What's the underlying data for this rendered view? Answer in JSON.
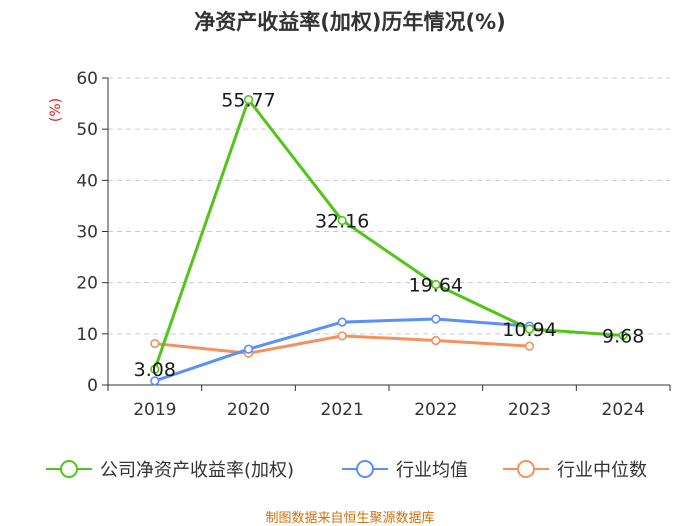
{
  "chart_data": {
    "type": "line",
    "title": "净资产收益率(加权)历年情况(%)",
    "ylabel": "(%)",
    "xlabel": "",
    "ylim": [
      0,
      60
    ],
    "yticks": [
      0,
      10,
      20,
      30,
      40,
      50,
      60
    ],
    "categories": [
      "2019",
      "2020",
      "2021",
      "2022",
      "2023",
      "2024"
    ],
    "grid": true,
    "legend_position": "bottom",
    "series": [
      {
        "name": "公司净资产收益率(加权)",
        "color": "#52c41a",
        "values": [
          3.08,
          55.77,
          32.16,
          19.64,
          10.94,
          9.68
        ],
        "labels": [
          "3.08",
          "55.77",
          "32.16",
          "19.64",
          "10.94",
          "9.68"
        ]
      },
      {
        "name": "行业均值",
        "color": "#5b8ff9",
        "values": [
          0.8,
          7.0,
          12.3,
          12.9,
          11.5,
          null
        ]
      },
      {
        "name": "行业中位数",
        "color": "#f4915d",
        "values": [
          8.1,
          6.2,
          9.6,
          8.7,
          7.6,
          null
        ]
      }
    ]
  },
  "source": "制图数据来自恒生聚源数据库"
}
